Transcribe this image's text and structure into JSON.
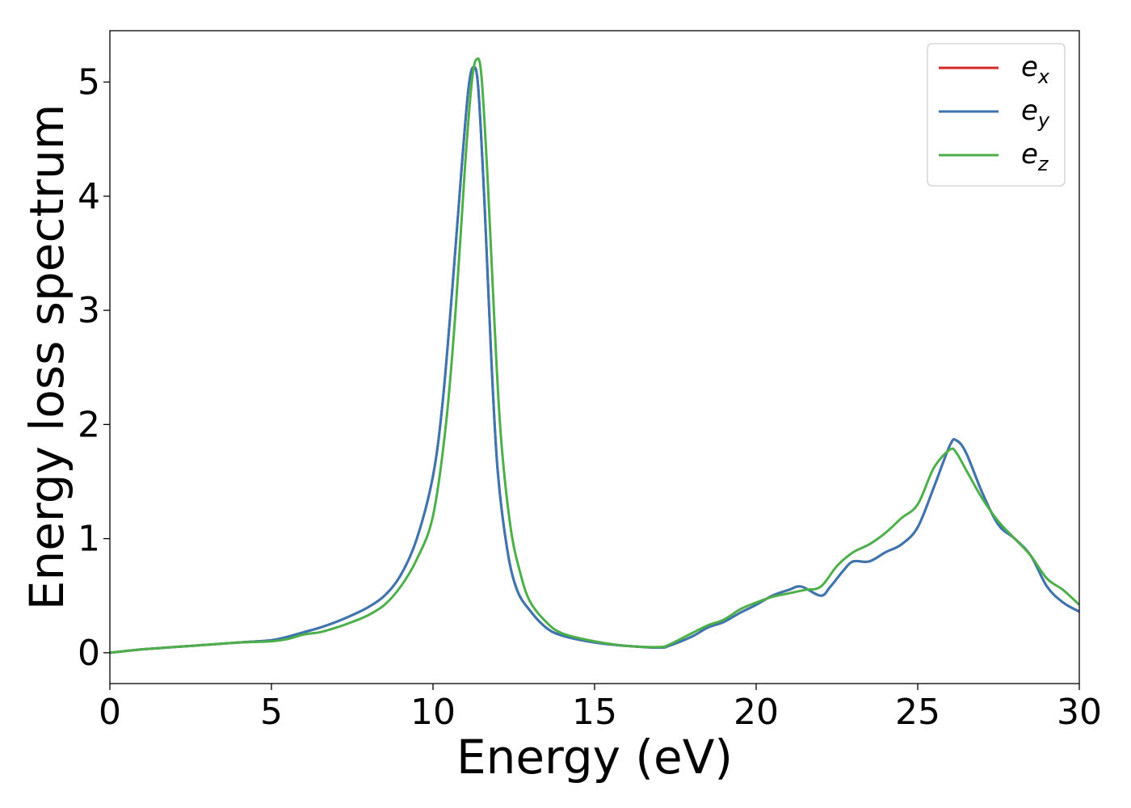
{
  "chart_data": {
    "type": "line",
    "xlabel": "Energy (eV)",
    "ylabel": "Energy loss spectrum",
    "xlim": [
      0,
      30
    ],
    "ylim": [
      -0.27,
      5.45
    ],
    "xticks": [
      0,
      5,
      10,
      15,
      20,
      25,
      30
    ],
    "yticks": [
      0,
      1,
      2,
      3,
      4,
      5
    ],
    "xtick_labels": [
      "0",
      "5",
      "10",
      "15",
      "20",
      "25",
      "30"
    ],
    "ytick_labels": [
      "0",
      "1",
      "2",
      "3",
      "4",
      "5"
    ],
    "grid": false,
    "legend_position": "top-right",
    "series": [
      {
        "name": "e_x",
        "legend_base": "e",
        "legend_sub": "x",
        "color": "#d62728",
        "x": [
          0,
          1,
          1.5,
          2,
          3,
          4,
          5,
          5.5,
          6,
          6.5,
          7,
          7.5,
          8,
          8.5,
          9,
          9.5,
          10,
          10.3,
          10.6,
          10.9,
          11.1,
          11.25,
          11.4,
          11.6,
          11.8,
          12,
          12.3,
          12.6,
          13,
          13.5,
          14,
          15,
          16,
          17,
          17.3,
          18,
          18.5,
          19,
          19.5,
          20,
          20.5,
          21,
          21.4,
          22,
          22.3,
          22.7,
          23,
          23.5,
          24,
          24.5,
          25,
          25.5,
          26,
          26.2,
          26.5,
          27,
          27.5,
          28,
          28.5,
          29,
          29.5,
          30
        ],
        "y": [
          0,
          0.03,
          0.04,
          0.05,
          0.07,
          0.09,
          0.11,
          0.14,
          0.18,
          0.22,
          0.27,
          0.33,
          0.4,
          0.5,
          0.68,
          1.0,
          1.55,
          2.2,
          3.2,
          4.3,
          4.95,
          5.13,
          4.95,
          3.9,
          2.6,
          1.6,
          0.9,
          0.55,
          0.37,
          0.22,
          0.15,
          0.09,
          0.06,
          0.045,
          0.06,
          0.14,
          0.22,
          0.27,
          0.35,
          0.42,
          0.5,
          0.55,
          0.58,
          0.5,
          0.58,
          0.72,
          0.8,
          0.8,
          0.88,
          0.95,
          1.1,
          1.45,
          1.82,
          1.86,
          1.75,
          1.4,
          1.12,
          1.0,
          0.85,
          0.58,
          0.44,
          0.36
        ]
      },
      {
        "name": "e_y",
        "legend_base": "e",
        "legend_sub": "y",
        "color": "#3a76b0",
        "x": [
          0,
          1,
          1.5,
          2,
          3,
          4,
          5,
          5.5,
          6,
          6.5,
          7,
          7.5,
          8,
          8.5,
          9,
          9.5,
          10,
          10.3,
          10.6,
          10.9,
          11.1,
          11.25,
          11.4,
          11.6,
          11.8,
          12,
          12.3,
          12.6,
          13,
          13.5,
          14,
          15,
          16,
          17,
          17.3,
          18,
          18.5,
          19,
          19.5,
          20,
          20.5,
          21,
          21.4,
          22,
          22.3,
          22.7,
          23,
          23.5,
          24,
          24.5,
          25,
          25.5,
          26,
          26.2,
          26.5,
          27,
          27.5,
          28,
          28.5,
          29,
          29.5,
          30
        ],
        "y": [
          0,
          0.03,
          0.04,
          0.05,
          0.07,
          0.09,
          0.11,
          0.14,
          0.18,
          0.22,
          0.27,
          0.33,
          0.4,
          0.5,
          0.68,
          1.0,
          1.55,
          2.2,
          3.2,
          4.3,
          4.95,
          5.13,
          4.95,
          3.9,
          2.6,
          1.6,
          0.9,
          0.55,
          0.37,
          0.22,
          0.15,
          0.09,
          0.06,
          0.045,
          0.06,
          0.14,
          0.22,
          0.27,
          0.35,
          0.42,
          0.5,
          0.55,
          0.58,
          0.5,
          0.58,
          0.72,
          0.8,
          0.8,
          0.88,
          0.95,
          1.1,
          1.45,
          1.82,
          1.86,
          1.75,
          1.4,
          1.12,
          1.0,
          0.85,
          0.58,
          0.44,
          0.36
        ]
      },
      {
        "name": "e_z",
        "legend_base": "e",
        "legend_sub": "z",
        "color": "#4daf4a",
        "x": [
          0,
          1,
          1.5,
          2,
          3,
          4,
          5,
          5.5,
          6,
          6.5,
          7,
          7.5,
          8,
          8.5,
          9,
          9.5,
          10,
          10.4,
          10.7,
          11.0,
          11.2,
          11.35,
          11.5,
          11.7,
          11.9,
          12.1,
          12.4,
          12.7,
          13,
          13.5,
          14,
          15,
          16,
          17,
          17.3,
          18,
          18.5,
          19,
          19.5,
          20,
          20.5,
          21,
          21.5,
          22,
          22.5,
          23,
          23.5,
          24,
          24.5,
          25,
          25.5,
          26,
          26.2,
          26.5,
          27,
          27.5,
          28,
          28.5,
          29,
          29.5,
          30
        ],
        "y": [
          0,
          0.03,
          0.04,
          0.05,
          0.07,
          0.09,
          0.1,
          0.12,
          0.16,
          0.18,
          0.22,
          0.27,
          0.33,
          0.42,
          0.58,
          0.82,
          1.2,
          2.0,
          3.0,
          4.3,
          5.0,
          5.2,
          5.05,
          4.1,
          2.9,
          1.9,
          1.1,
          0.7,
          0.45,
          0.27,
          0.17,
          0.1,
          0.06,
          0.05,
          0.07,
          0.17,
          0.24,
          0.29,
          0.38,
          0.44,
          0.49,
          0.52,
          0.55,
          0.58,
          0.76,
          0.88,
          0.95,
          1.05,
          1.18,
          1.3,
          1.62,
          1.78,
          1.75,
          1.6,
          1.35,
          1.15,
          1.0,
          0.85,
          0.65,
          0.55,
          0.42
        ]
      }
    ]
  }
}
